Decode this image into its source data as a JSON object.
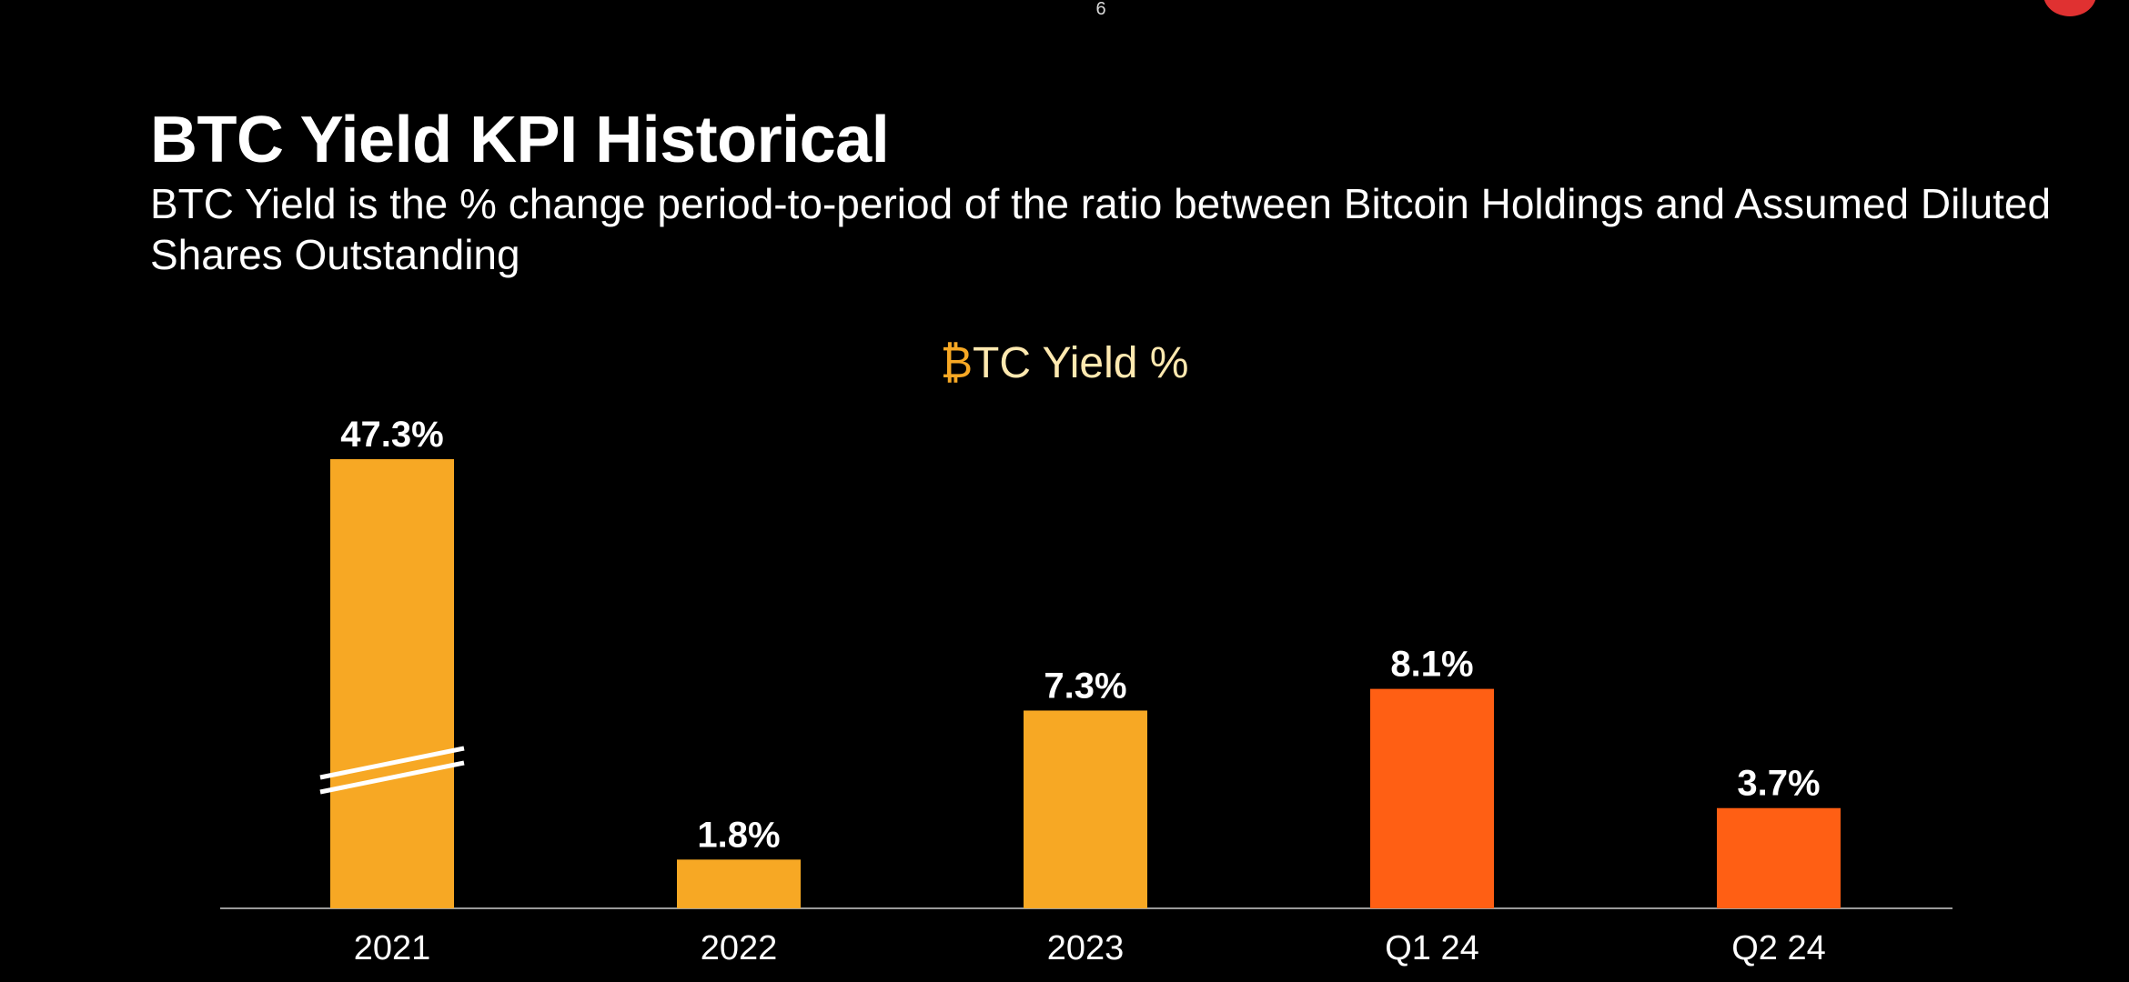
{
  "page_number": "6",
  "title": "BTC Yield KPI Historical",
  "subtitle": "BTC Yield is the % change period-to-period of the ratio between Bitcoin Holdings and Assumed Diluted Shares Outstanding",
  "chart_data": {
    "type": "bar",
    "title_symbol": "₿",
    "title_text": "TC Yield %",
    "categories": [
      "2021",
      "2022",
      "2023",
      "Q1 24",
      "Q2 24"
    ],
    "values": [
      47.3,
      1.8,
      7.3,
      8.1,
      3.7
    ],
    "value_labels": [
      "47.3%",
      "1.8%",
      "7.3%",
      "8.1%",
      "3.7%"
    ],
    "colors": [
      "#F7A824",
      "#F7A824",
      "#F7A824",
      "#FF5F14",
      "#FF5F14"
    ],
    "axis_break_on": "2021",
    "xlabel": "",
    "ylabel": "",
    "grid": false
  }
}
